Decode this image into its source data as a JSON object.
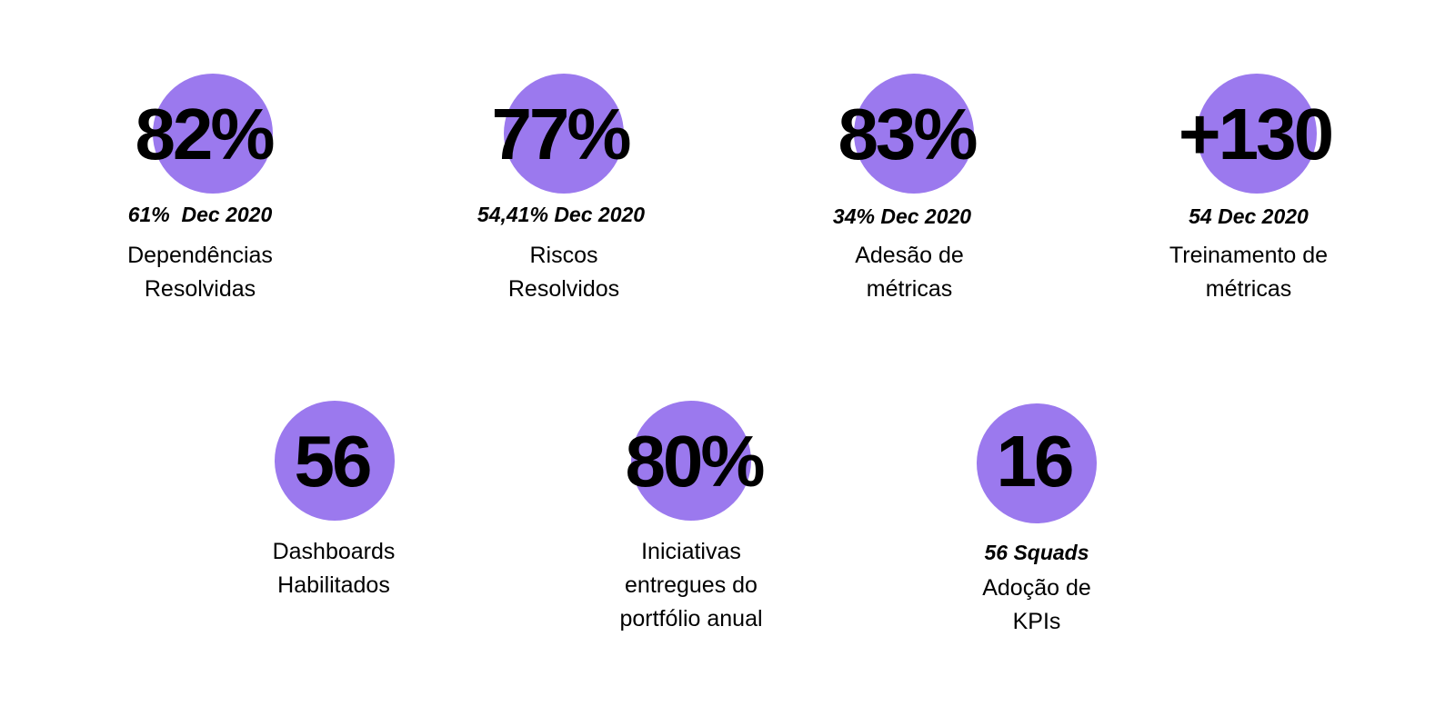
{
  "accent_color": "#9b79ee",
  "metrics": [
    {
      "value": "82%",
      "subtitle": "61%  Dec 2020",
      "label": [
        "Dependências",
        "Resolvidas"
      ]
    },
    {
      "value": "77%",
      "subtitle": "54,41% Dec 2020",
      "label": [
        "Riscos",
        "Resolvidos"
      ]
    },
    {
      "value": "83%",
      "subtitle": "34% Dec 2020",
      "label": [
        "Adesão de",
        "métricas"
      ]
    },
    {
      "value": "+130",
      "subtitle": "54 Dec 2020",
      "label": [
        "Treinamento de",
        "métricas"
      ]
    },
    {
      "value": "56",
      "label": [
        "Dashboards",
        "Habilitados"
      ]
    },
    {
      "value": "80%",
      "label": [
        "Iniciativas",
        "entregues do",
        "portfólio anual"
      ]
    },
    {
      "value": "16",
      "subtitle": "56 Squads",
      "label": [
        "Adoção de",
        "KPIs"
      ]
    }
  ]
}
